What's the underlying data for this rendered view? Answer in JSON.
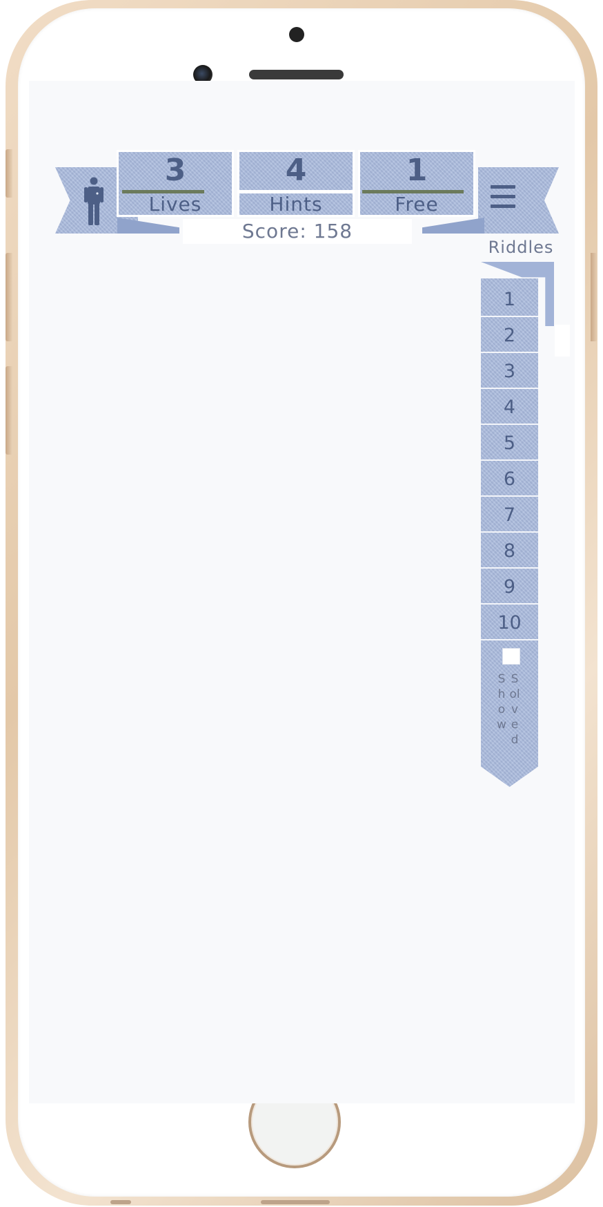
{
  "header": {
    "stats": [
      {
        "value": "3",
        "label": "Lives",
        "divider": true
      },
      {
        "value": "4",
        "label": "Hints",
        "divider": false
      },
      {
        "value": "1",
        "label": "Free",
        "divider": true
      }
    ],
    "score": "Score: 158",
    "profile_icon": "person-icon",
    "menu_icon": "hamburger-menu-icon"
  },
  "sidebar": {
    "title": "Riddles",
    "items": [
      "1",
      "2",
      "3",
      "4",
      "5",
      "6",
      "7",
      "8",
      "9",
      "10"
    ],
    "show_word": "Show",
    "solved_word": "Solved",
    "show_solved_checked": false
  },
  "colors": {
    "denim": "#a7b8db",
    "ink": "#4d5f86",
    "divider_green": "#6b7a5c",
    "screen_bg": "#f8f9fb",
    "frame_gold": "#e3c8a8"
  }
}
